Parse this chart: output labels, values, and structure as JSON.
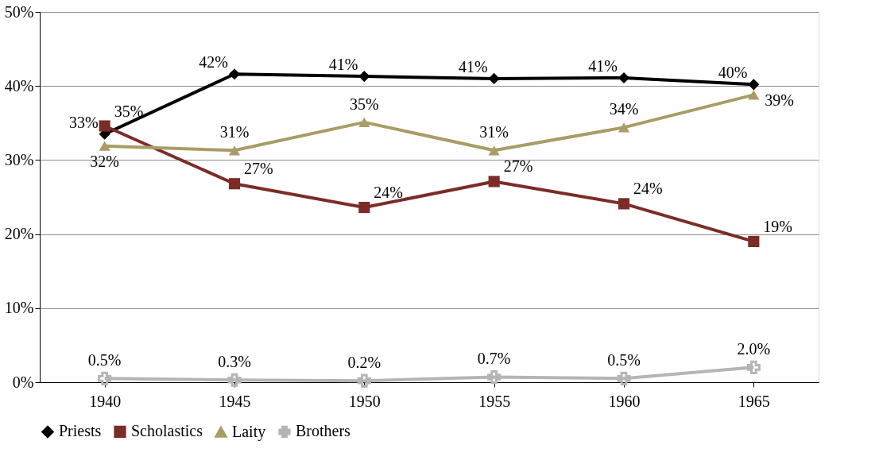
{
  "chart_data": {
    "type": "line",
    "categories": [
      "1940",
      "1945",
      "1950",
      "1955",
      "1960",
      "1965"
    ],
    "ylim": [
      0,
      50
    ],
    "yticks": [
      {
        "value": 0,
        "label": "0%"
      },
      {
        "value": 10,
        "label": "10%"
      },
      {
        "value": 20,
        "label": "20%"
      },
      {
        "value": 30,
        "label": "30%"
      },
      {
        "value": 40,
        "label": "40%"
      },
      {
        "value": 50,
        "label": "50%"
      }
    ],
    "grid": "y",
    "legend": "bottom",
    "line_style": "solid",
    "series": [
      {
        "name": "Priests",
        "color": "#000000",
        "marker": "diamond",
        "values": [
          33.5,
          41.6,
          41.3,
          41.0,
          41.1,
          40.2
        ],
        "value_labels": [
          "33%",
          "42%",
          "41%",
          "41%",
          "41%",
          "40%"
        ]
      },
      {
        "name": "Scholastics",
        "color": "#7b2c26",
        "marker": "square",
        "values": [
          34.6,
          26.8,
          23.6,
          27.1,
          24.1,
          19.0
        ],
        "value_labels": [
          "35%",
          "27%",
          "24%",
          "27%",
          "24%",
          "19%"
        ]
      },
      {
        "name": "Laity",
        "color": "#a99c66",
        "marker": "triangle",
        "values": [
          31.9,
          31.3,
          35.1,
          31.3,
          34.4,
          38.8
        ],
        "value_labels": [
          "32%",
          "31%",
          "35%",
          "31%",
          "34%",
          "39%"
        ]
      },
      {
        "name": "Brothers",
        "color": "#b5b5b5",
        "marker": "cross",
        "values": [
          0.5,
          0.3,
          0.2,
          0.7,
          0.5,
          2.0
        ],
        "value_labels": [
          "0.5%",
          "0.3%",
          "0.2%",
          "0.7%",
          "0.5%",
          "2.0%"
        ]
      }
    ]
  }
}
